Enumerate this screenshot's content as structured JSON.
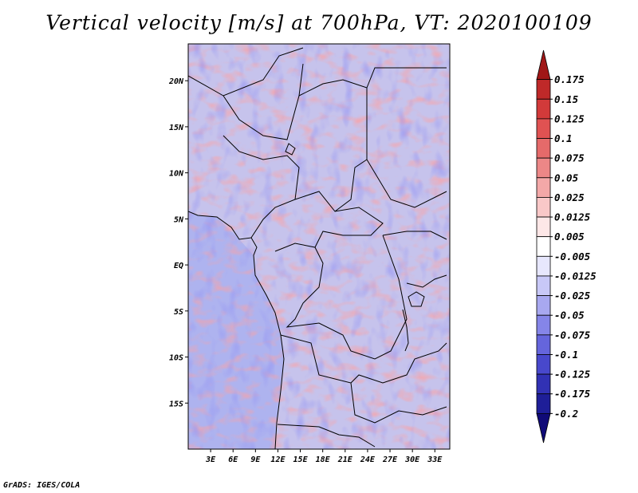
{
  "title": "Vertical velocity [m/s] at 700hPa, VT: 2020100109",
  "credit": "GrADS: IGES/COLA",
  "map": {
    "variable": "Vertical velocity",
    "units": "m/s",
    "level": "700hPa",
    "valid_time": "2020100109",
    "lon_range": [
      0,
      35
    ],
    "lat_range": [
      -20,
      24
    ],
    "lat_ticks": [
      {
        "value": 20,
        "label": "20N"
      },
      {
        "value": 15,
        "label": "15N"
      },
      {
        "value": 10,
        "label": "10N"
      },
      {
        "value": 5,
        "label": "5N"
      },
      {
        "value": 0,
        "label": "EQ"
      },
      {
        "value": -5,
        "label": "5S"
      },
      {
        "value": -10,
        "label": "10S"
      },
      {
        "value": -15,
        "label": "15S"
      }
    ],
    "lon_ticks": [
      {
        "value": 3,
        "label": "3E"
      },
      {
        "value": 6,
        "label": "6E"
      },
      {
        "value": 9,
        "label": "9E"
      },
      {
        "value": 12,
        "label": "12E"
      },
      {
        "value": 15,
        "label": "15E"
      },
      {
        "value": 18,
        "label": "18E"
      },
      {
        "value": 21,
        "label": "21E"
      },
      {
        "value": 24,
        "label": "24E"
      },
      {
        "value": 27,
        "label": "27E"
      },
      {
        "value": 30,
        "label": "30E"
      },
      {
        "value": 33,
        "label": "33E"
      }
    ]
  },
  "colorbar": {
    "labels": [
      "0.175",
      "0.15",
      "0.125",
      "0.1",
      "0.075",
      "0.05",
      "0.025",
      "0.0125",
      "0.005",
      "-0.005",
      "-0.0125",
      "-0.025",
      "-0.05",
      "-0.075",
      "-0.1",
      "-0.125",
      "-0.175",
      "-0.2"
    ],
    "colors": [
      "#a01717",
      "#bf2929",
      "#d23a3a",
      "#e05252",
      "#e56a6a",
      "#ec8787",
      "#f3a8a8",
      "#f9c8c8",
      "#fde7e7",
      "#ffffff",
      "#e7e7fd",
      "#c8c8f7",
      "#a8a8f0",
      "#8585e8",
      "#6565dc",
      "#4848cc",
      "#3131b4",
      "#1e1e98",
      "#100a78"
    ]
  },
  "field_colors": {
    "ocean": "#aeb3ef",
    "land_base": "#c6c3ec",
    "border": "#000000"
  }
}
